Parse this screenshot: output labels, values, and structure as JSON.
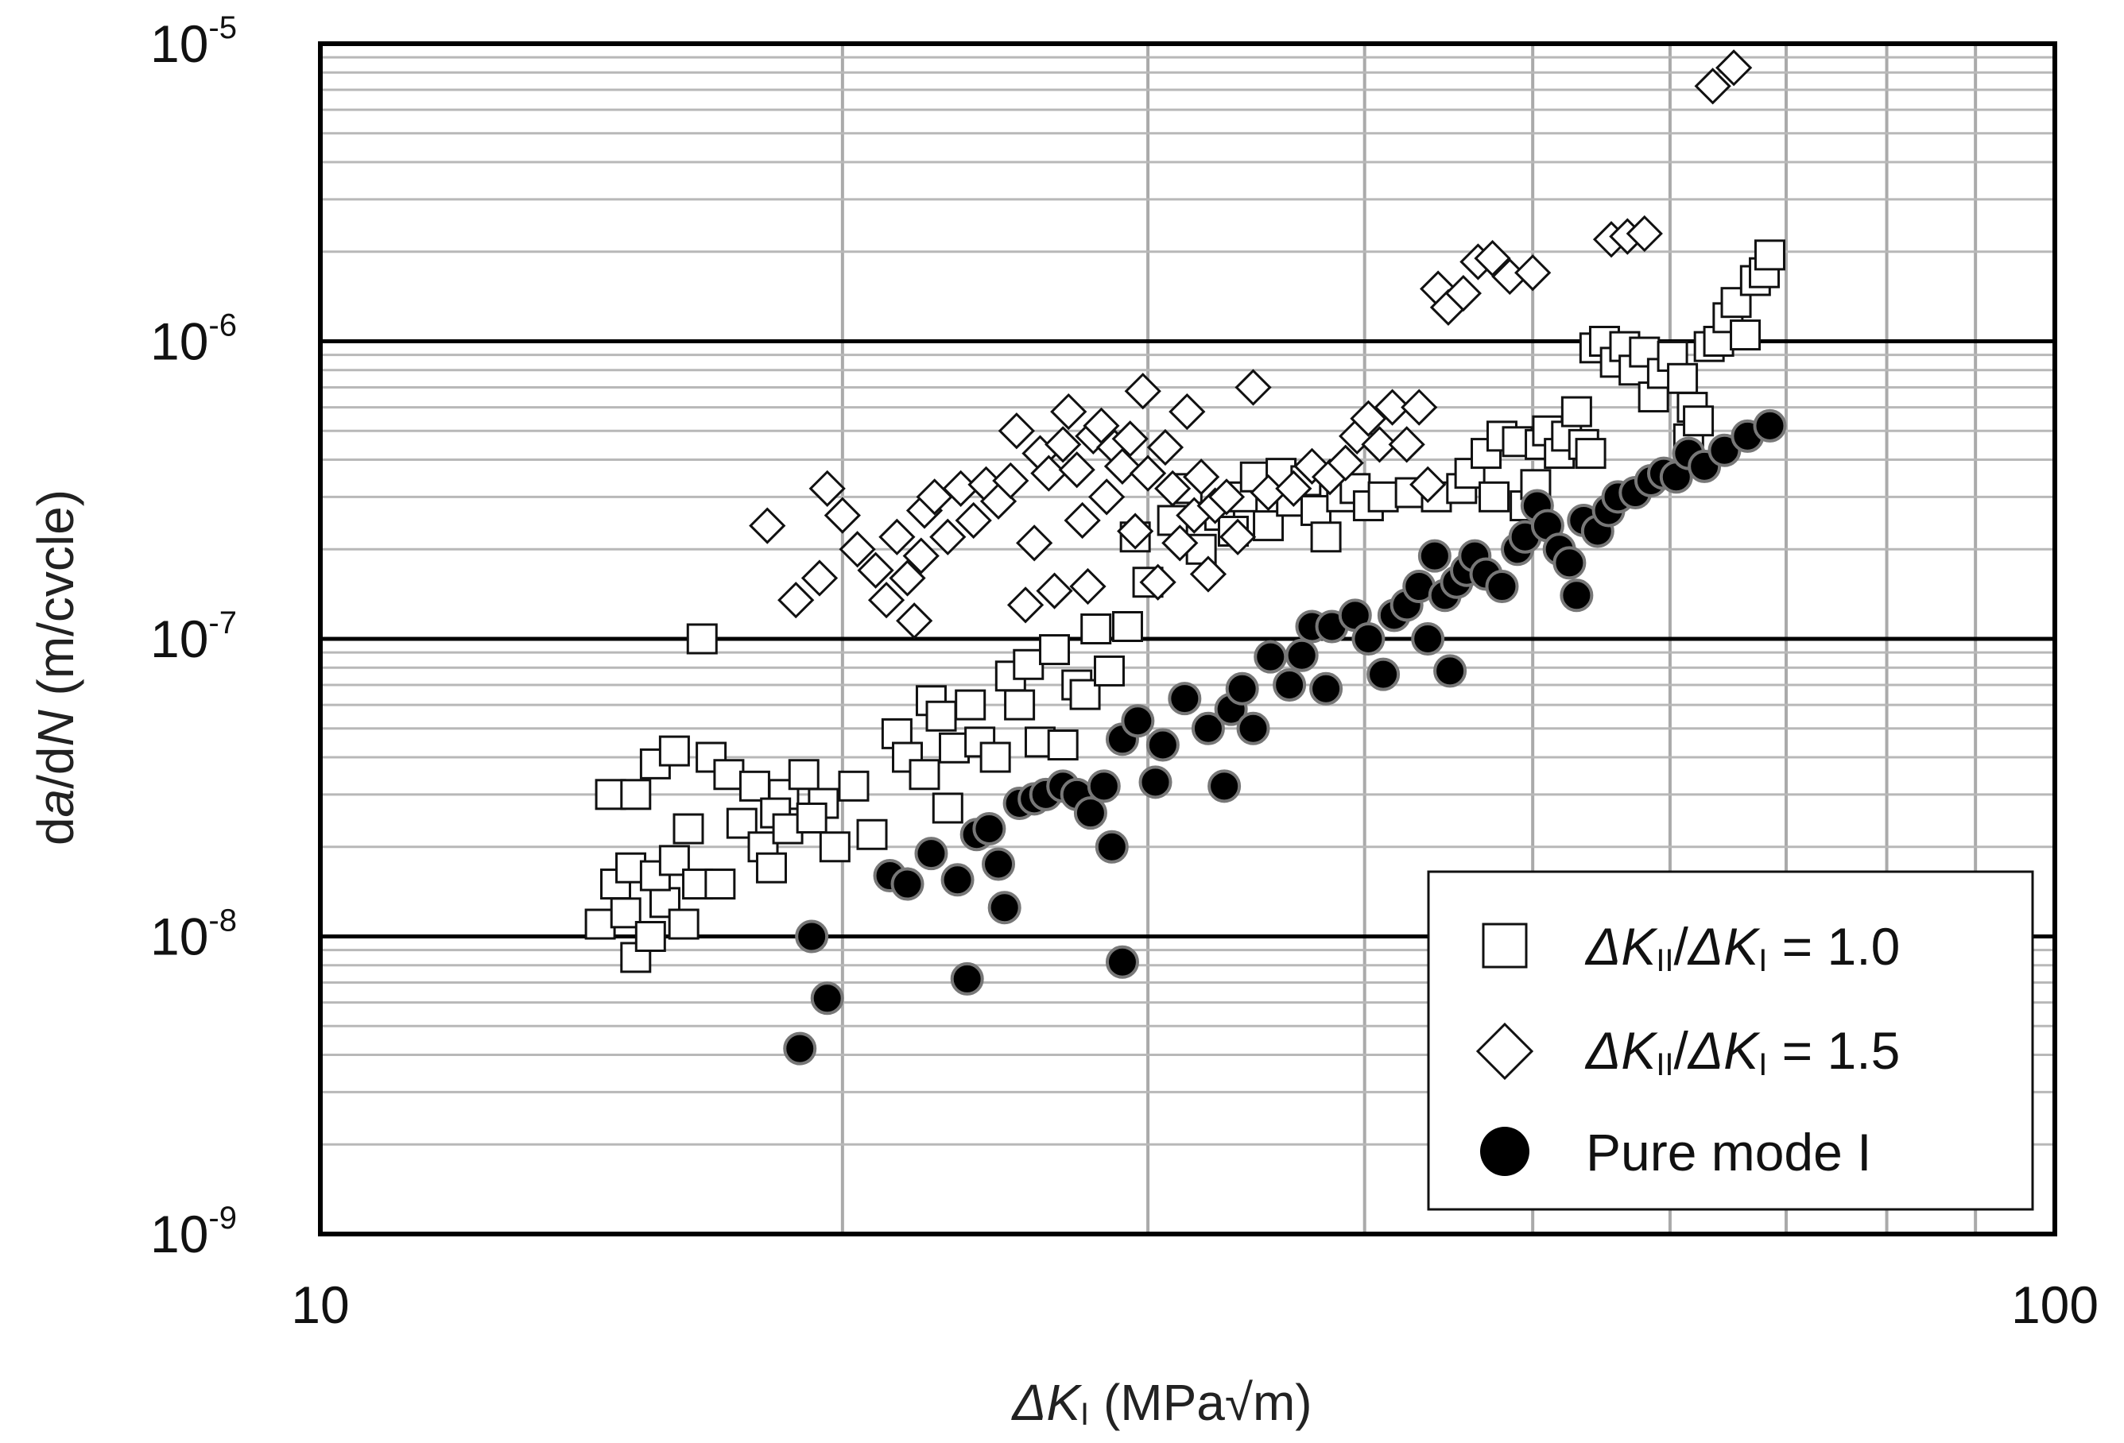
{
  "chart_data": {
    "type": "scatter",
    "xscale": "log",
    "yscale": "log",
    "xlim": [
      10,
      100
    ],
    "ylim": [
      1e-09,
      1e-05
    ],
    "grid": true,
    "legend_position": "bottom-right",
    "xlabel": {
      "delta": "ΔK",
      "sub": "I",
      "rest": " (MPa√m)"
    },
    "ylabel": {
      "pre": "da",
      "ital1": "a",
      "mid": "/d",
      "ital2": "N",
      "rest": " (m/cvcle)"
    },
    "x_ticks": [
      {
        "value": 10,
        "label": "10"
      },
      {
        "value": 100,
        "label": "100"
      }
    ],
    "y_ticks": [
      {
        "value": 1e-05,
        "base": "10",
        "exp": "-5"
      },
      {
        "value": 1e-06,
        "base": "10",
        "exp": "-6"
      },
      {
        "value": 1e-07,
        "base": "10",
        "exp": "-7"
      },
      {
        "value": 1e-08,
        "base": "10",
        "exp": "-8"
      },
      {
        "value": 1e-09,
        "base": "10",
        "exp": "-9"
      }
    ],
    "series": [
      {
        "name": "ΔKII/ΔKI = 1.0",
        "legend": {
          "d1": "ΔK",
          "s1": "II",
          "slash": "/",
          "d2": "ΔK",
          "s2": "I",
          "rest": " = 1.0"
        },
        "marker": "square",
        "fill": "#ffffff",
        "stroke": "#111111",
        "points": [
          [
            14.5,
            1.1e-08
          ],
          [
            14.8,
            1.5e-08
          ],
          [
            15.0,
            1.2e-08
          ],
          [
            15.2,
            8.5e-09
          ],
          [
            15.5,
            1e-08
          ],
          [
            15.8,
            1.3e-08
          ],
          [
            16.2,
            1.1e-08
          ],
          [
            15.1,
            1.7e-08
          ],
          [
            15.6,
            1.6e-08
          ],
          [
            16.0,
            1.8e-08
          ],
          [
            16.5,
            1.5e-08
          ],
          [
            17.0,
            1.5e-08
          ],
          [
            14.7,
            3e-08
          ],
          [
            15.2,
            3e-08
          ],
          [
            15.6,
            3.8e-08
          ],
          [
            16.0,
            4.2e-08
          ],
          [
            16.8,
            4e-08
          ],
          [
            17.2,
            3.5e-08
          ],
          [
            17.8,
            3.2e-08
          ],
          [
            18.5,
            3e-08
          ],
          [
            19.0,
            3.5e-08
          ],
          [
            19.5,
            2.8e-08
          ],
          [
            20.3,
            3.2e-08
          ],
          [
            20.8,
            2.2e-08
          ],
          [
            16.3,
            2.3e-08
          ],
          [
            17.5,
            2.4e-08
          ],
          [
            18.0,
            2e-08
          ],
          [
            18.3,
            2.6e-08
          ],
          [
            18.6,
            2.3e-08
          ],
          [
            19.2,
            2.5e-08
          ],
          [
            18.2,
            1.7e-08
          ],
          [
            19.8,
            2e-08
          ],
          [
            21.5,
            4.8e-08
          ],
          [
            21.8,
            4e-08
          ],
          [
            22.3,
            3.5e-08
          ],
          [
            22.5,
            6.2e-08
          ],
          [
            22.8,
            5.5e-08
          ],
          [
            23.0,
            2.7e-08
          ],
          [
            23.2,
            4.3e-08
          ],
          [
            23.7,
            6e-08
          ],
          [
            24.0,
            4.5e-08
          ],
          [
            24.5,
            4e-08
          ],
          [
            25.0,
            7.5e-08
          ],
          [
            25.3,
            6e-08
          ],
          [
            25.6,
            8.2e-08
          ],
          [
            26.0,
            4.5e-08
          ],
          [
            26.5,
            9.2e-08
          ],
          [
            26.8,
            4.4e-08
          ],
          [
            27.3,
            7e-08
          ],
          [
            27.6,
            6.5e-08
          ],
          [
            28.0,
            1.08e-07
          ],
          [
            28.5,
            7.8e-08
          ],
          [
            29.2,
            1.1e-07
          ],
          [
            16.6,
            1e-07
          ],
          [
            30.0,
            1.55e-07
          ],
          [
            29.5,
            2.2e-07
          ],
          [
            31.0,
            2.5e-07
          ],
          [
            31.6,
            3.2e-07
          ],
          [
            32.2,
            2e-07
          ],
          [
            33.0,
            2.6e-07
          ],
          [
            33.6,
            2.3e-07
          ],
          [
            34.0,
            3e-07
          ],
          [
            34.6,
            3.5e-07
          ],
          [
            35.2,
            2.4e-07
          ],
          [
            35.8,
            3.6e-07
          ],
          [
            36.3,
            2.9e-07
          ],
          [
            37.0,
            3.4e-07
          ],
          [
            37.5,
            2.7e-07
          ],
          [
            38.0,
            2.2e-07
          ],
          [
            38.8,
            3e-07
          ],
          [
            39.5,
            3.2e-07
          ],
          [
            40.2,
            2.8e-07
          ],
          [
            41.0,
            3e-07
          ],
          [
            42.5,
            3.1e-07
          ],
          [
            44.0,
            3e-07
          ],
          [
            45.5,
            3.2e-07
          ],
          [
            46.0,
            3.6e-07
          ],
          [
            47.0,
            4.2e-07
          ],
          [
            47.5,
            3e-07
          ],
          [
            48.0,
            4.8e-07
          ],
          [
            49.0,
            4.6e-07
          ],
          [
            49.5,
            2.8e-07
          ],
          [
            50.2,
            3.3e-07
          ],
          [
            50.5,
            4.5e-07
          ],
          [
            51.0,
            5e-07
          ],
          [
            51.8,
            4.2e-07
          ],
          [
            52.3,
            4.8e-07
          ],
          [
            53.0,
            5.8e-07
          ],
          [
            53.5,
            4.5e-07
          ],
          [
            54.0,
            4.2e-07
          ],
          [
            54.3,
            9.5e-07
          ],
          [
            55.0,
            1e-06
          ],
          [
            55.8,
            8.5e-07
          ],
          [
            56.5,
            9.6e-07
          ],
          [
            57.2,
            8e-07
          ],
          [
            58.0,
            9.2e-07
          ],
          [
            58.7,
            6.5e-07
          ],
          [
            59.4,
            7.8e-07
          ],
          [
            60.2,
            8.9e-07
          ],
          [
            61.0,
            7.5e-07
          ],
          [
            61.8,
            6e-07
          ],
          [
            61.5,
            4.7e-07
          ],
          [
            62.3,
            5.4e-07
          ],
          [
            63.2,
            9.6e-07
          ],
          [
            64.0,
            1e-06
          ],
          [
            64.8,
            1.2e-06
          ],
          [
            65.5,
            1.35e-06
          ],
          [
            66.3,
            1.05e-06
          ],
          [
            67.2,
            1.6e-06
          ],
          [
            68.0,
            1.7e-06
          ],
          [
            68.5,
            1.95e-06
          ]
        ]
      },
      {
        "name": "ΔKII/ΔKI = 1.5",
        "legend": {
          "d1": "ΔK",
          "s1": "II",
          "slash": "/",
          "d2": "ΔK",
          "s2": "I",
          "rest": " = 1.5"
        },
        "marker": "diamond",
        "fill": "#ffffff",
        "stroke": "#111111",
        "points": [
          [
            18.1,
            2.4e-07
          ],
          [
            18.8,
            1.35e-07
          ],
          [
            19.4,
            1.6e-07
          ],
          [
            19.6,
            3.2e-07
          ],
          [
            20.0,
            2.6e-07
          ],
          [
            20.4,
            2e-07
          ],
          [
            20.9,
            1.7e-07
          ],
          [
            21.2,
            1.35e-07
          ],
          [
            21.5,
            2.2e-07
          ],
          [
            21.8,
            1.6e-07
          ],
          [
            22.0,
            1.15e-07
          ],
          [
            22.2,
            1.9e-07
          ],
          [
            22.3,
            2.7e-07
          ],
          [
            22.6,
            3e-07
          ],
          [
            23.0,
            2.2e-07
          ],
          [
            23.4,
            3.2e-07
          ],
          [
            23.8,
            2.5e-07
          ],
          [
            24.2,
            3.3e-07
          ],
          [
            24.6,
            2.9e-07
          ],
          [
            25.0,
            3.4e-07
          ],
          [
            25.2,
            5e-07
          ],
          [
            25.5,
            1.3e-07
          ],
          [
            25.8,
            2.1e-07
          ],
          [
            26.0,
            4.2e-07
          ],
          [
            26.3,
            3.6e-07
          ],
          [
            26.5,
            1.45e-07
          ],
          [
            26.8,
            4.5e-07
          ],
          [
            27.0,
            5.8e-07
          ],
          [
            27.3,
            3.7e-07
          ],
          [
            27.5,
            2.5e-07
          ],
          [
            27.7,
            1.5e-07
          ],
          [
            27.9,
            4.8e-07
          ],
          [
            28.2,
            5.2e-07
          ],
          [
            28.4,
            3e-07
          ],
          [
            28.7,
            4.4e-07
          ],
          [
            29.0,
            3.8e-07
          ],
          [
            29.3,
            4.7e-07
          ],
          [
            29.5,
            2.3e-07
          ],
          [
            29.8,
            6.8e-07
          ],
          [
            30.0,
            3.6e-07
          ],
          [
            30.4,
            1.55e-07
          ],
          [
            30.7,
            4.4e-07
          ],
          [
            31.0,
            3.2e-07
          ],
          [
            31.3,
            2.1e-07
          ],
          [
            31.6,
            5.8e-07
          ],
          [
            31.9,
            2.6e-07
          ],
          [
            32.2,
            3.5e-07
          ],
          [
            32.5,
            1.65e-07
          ],
          [
            32.8,
            2.8e-07
          ],
          [
            33.3,
            3e-07
          ],
          [
            33.8,
            2.2e-07
          ],
          [
            34.5,
            7e-07
          ],
          [
            35.2,
            3.1e-07
          ],
          [
            36.4,
            3.2e-07
          ],
          [
            37.3,
            3.8e-07
          ],
          [
            38.2,
            3.5e-07
          ],
          [
            39.0,
            3.9e-07
          ],
          [
            39.6,
            4.8e-07
          ],
          [
            40.2,
            5.5e-07
          ],
          [
            40.8,
            4.5e-07
          ],
          [
            41.5,
            6e-07
          ],
          [
            42.3,
            4.5e-07
          ],
          [
            43.0,
            6e-07
          ],
          [
            43.5,
            3.3e-07
          ],
          [
            44.1,
            1.5e-06
          ],
          [
            44.7,
            1.3e-06
          ],
          [
            45.6,
            1.45e-06
          ],
          [
            46.5,
            1.85e-06
          ],
          [
            47.4,
            1.9e-06
          ],
          [
            48.5,
            1.65e-06
          ],
          [
            50.0,
            1.7e-06
          ],
          [
            55.5,
            2.2e-06
          ],
          [
            56.7,
            2.25e-06
          ],
          [
            58.0,
            2.3e-06
          ],
          [
            63.5,
            7.2e-06
          ],
          [
            65.3,
            8.3e-06
          ]
        ]
      },
      {
        "name": "Pure mode I",
        "legend": {
          "label": "Pure mode I"
        },
        "marker": "circle",
        "fill": "#000000",
        "stroke": "#777777",
        "points": [
          [
            19.2,
            1e-08
          ],
          [
            19.6,
            6.2e-09
          ],
          [
            18.9,
            4.2e-09
          ],
          [
            21.3,
            1.6e-08
          ],
          [
            21.8,
            1.5e-08
          ],
          [
            22.5,
            1.9e-08
          ],
          [
            23.3,
            1.55e-08
          ],
          [
            23.9,
            2.2e-08
          ],
          [
            24.3,
            2.3e-08
          ],
          [
            24.6,
            1.75e-08
          ],
          [
            24.8,
            1.25e-08
          ],
          [
            23.6,
            7.2e-09
          ],
          [
            25.3,
            2.8e-08
          ],
          [
            25.8,
            2.9e-08
          ],
          [
            26.2,
            3e-08
          ],
          [
            26.8,
            3.2e-08
          ],
          [
            27.3,
            3e-08
          ],
          [
            27.8,
            2.6e-08
          ],
          [
            28.3,
            3.2e-08
          ],
          [
            28.6,
            2e-08
          ],
          [
            29.0,
            4.6e-08
          ],
          [
            29.6,
            5.3e-08
          ],
          [
            30.3,
            3.3e-08
          ],
          [
            30.6,
            4.4e-08
          ],
          [
            29.0,
            8.2e-09
          ],
          [
            31.5,
            6.3e-08
          ],
          [
            32.5,
            5e-08
          ],
          [
            33.2,
            3.2e-08
          ],
          [
            33.5,
            5.8e-08
          ],
          [
            34.0,
            6.8e-08
          ],
          [
            34.5,
            5e-08
          ],
          [
            35.3,
            8.7e-08
          ],
          [
            36.2,
            7e-08
          ],
          [
            36.8,
            8.8e-08
          ],
          [
            37.3,
            1.1e-07
          ],
          [
            38.3,
            1.1e-07
          ],
          [
            38.0,
            6.8e-08
          ],
          [
            39.5,
            1.2e-07
          ],
          [
            40.2,
            1e-07
          ],
          [
            41.0,
            7.6e-08
          ],
          [
            41.6,
            1.2e-07
          ],
          [
            42.3,
            1.3e-07
          ],
          [
            43.0,
            1.5e-07
          ],
          [
            43.5,
            1e-07
          ],
          [
            43.9,
            1.9e-07
          ],
          [
            44.5,
            1.4e-07
          ],
          [
            45.2,
            1.55e-07
          ],
          [
            45.8,
            1.7e-07
          ],
          [
            44.8,
            7.8e-08
          ],
          [
            46.3,
            1.9e-07
          ],
          [
            47.0,
            1.65e-07
          ],
          [
            48.0,
            1.5e-07
          ],
          [
            49.0,
            2e-07
          ],
          [
            49.5,
            2.2e-07
          ],
          [
            50.3,
            2.8e-07
          ],
          [
            51.0,
            2.4e-07
          ],
          [
            51.8,
            2e-07
          ],
          [
            52.5,
            1.8e-07
          ],
          [
            53.0,
            1.4e-07
          ],
          [
            53.5,
            2.5e-07
          ],
          [
            54.5,
            2.3e-07
          ],
          [
            55.3,
            2.7e-07
          ],
          [
            56.0,
            3e-07
          ],
          [
            57.3,
            3.1e-07
          ],
          [
            58.5,
            3.4e-07
          ],
          [
            59.5,
            3.6e-07
          ],
          [
            60.5,
            3.5e-07
          ],
          [
            61.5,
            4.2e-07
          ],
          [
            62.8,
            3.8e-07
          ],
          [
            64.5,
            4.3e-07
          ],
          [
            66.5,
            4.8e-07
          ],
          [
            68.5,
            5.2e-07
          ]
        ]
      }
    ]
  }
}
